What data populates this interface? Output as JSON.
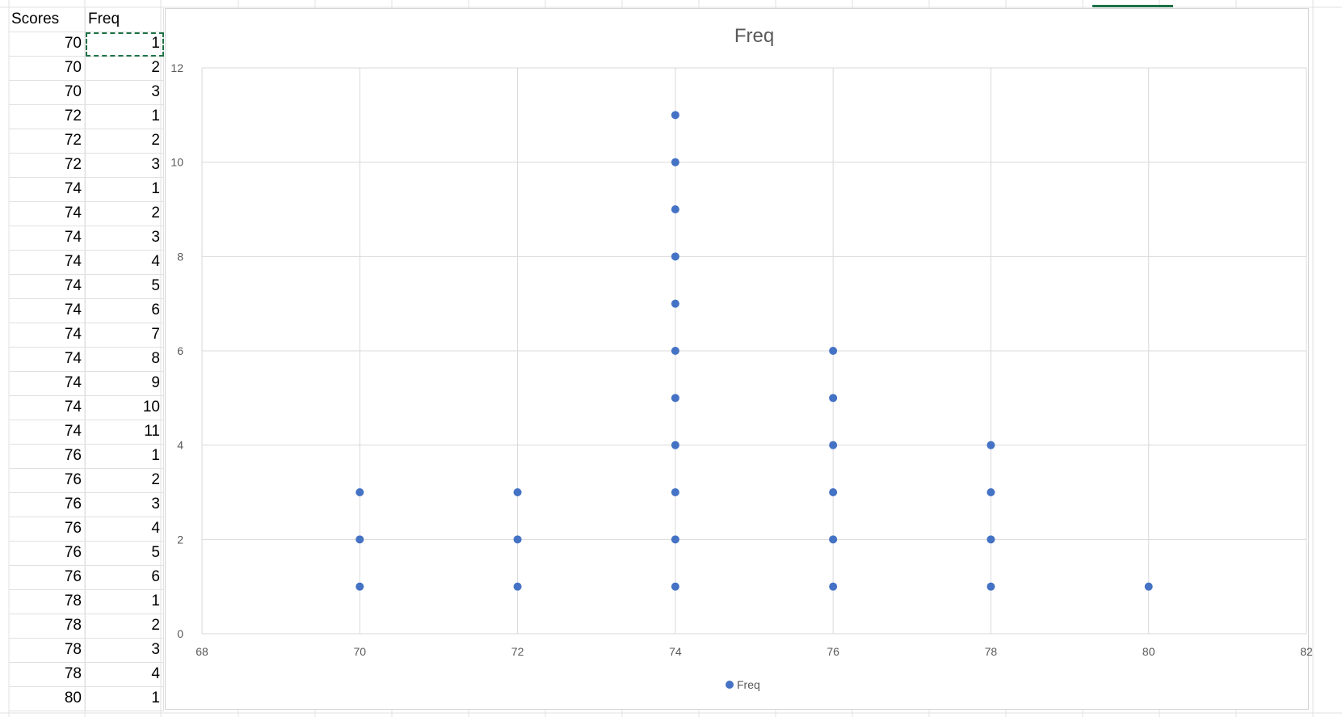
{
  "sheet": {
    "headers": [
      "Scores",
      "Freq"
    ],
    "rows": [
      [
        70,
        1
      ],
      [
        70,
        2
      ],
      [
        70,
        3
      ],
      [
        72,
        1
      ],
      [
        72,
        2
      ],
      [
        72,
        3
      ],
      [
        74,
        1
      ],
      [
        74,
        2
      ],
      [
        74,
        3
      ],
      [
        74,
        4
      ],
      [
        74,
        5
      ],
      [
        74,
        6
      ],
      [
        74,
        7
      ],
      [
        74,
        8
      ],
      [
        74,
        9
      ],
      [
        74,
        10
      ],
      [
        74,
        11
      ],
      [
        76,
        1
      ],
      [
        76,
        2
      ],
      [
        76,
        3
      ],
      [
        76,
        4
      ],
      [
        76,
        5
      ],
      [
        76,
        6
      ],
      [
        78,
        1
      ],
      [
        78,
        2
      ],
      [
        78,
        3
      ],
      [
        78,
        4
      ],
      [
        80,
        1
      ]
    ]
  },
  "chart_data": {
    "type": "scatter",
    "title": "Freq",
    "xlabel": "",
    "ylabel": "",
    "xlim": [
      68,
      82
    ],
    "ylim": [
      0,
      12
    ],
    "x_ticks": [
      68,
      70,
      72,
      74,
      76,
      78,
      80,
      82
    ],
    "y_ticks": [
      0,
      2,
      4,
      6,
      8,
      10,
      12
    ],
    "grid": true,
    "legend_position": "bottom",
    "series": [
      {
        "name": "Freq",
        "color": "#4472c4",
        "x": [
          70,
          70,
          70,
          72,
          72,
          72,
          74,
          74,
          74,
          74,
          74,
          74,
          74,
          74,
          74,
          74,
          74,
          76,
          76,
          76,
          76,
          76,
          76,
          78,
          78,
          78,
          78,
          80
        ],
        "y": [
          1,
          2,
          3,
          1,
          2,
          3,
          1,
          2,
          3,
          4,
          5,
          6,
          7,
          8,
          9,
          10,
          11,
          1,
          2,
          3,
          4,
          5,
          6,
          1,
          2,
          3,
          4,
          1
        ]
      }
    ]
  }
}
